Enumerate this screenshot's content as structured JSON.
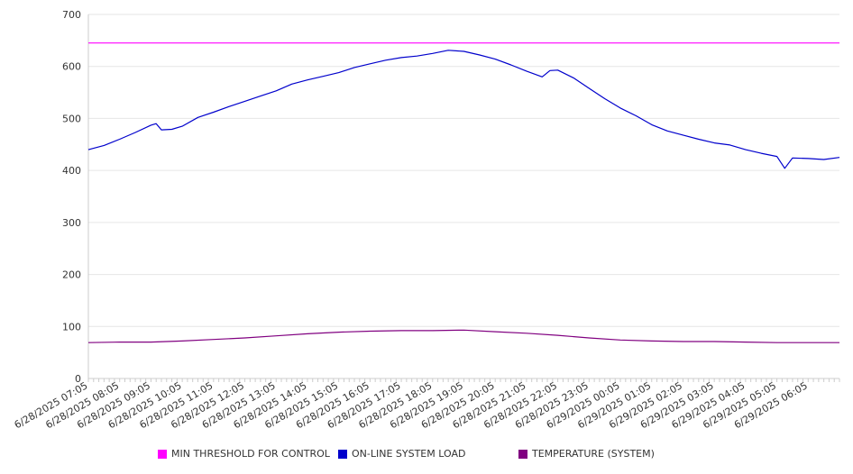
{
  "chart_data": {
    "type": "line",
    "title": "",
    "xlabel": "",
    "ylabel": "",
    "ylim": [
      0,
      700
    ],
    "yticks": [
      "0",
      "100",
      "200",
      "300",
      "400",
      "500",
      "600",
      "700"
    ],
    "xticks": [
      "6/28/2025 07:05",
      "6/28/2025 08:05",
      "6/28/2025 09:05",
      "6/28/2025 10:05",
      "6/28/2025 11:05",
      "6/28/2025 12:05",
      "6/28/2025 13:05",
      "6/28/2025 14:05",
      "6/28/2025 15:05",
      "6/28/2025 16:05",
      "6/28/2025 17:05",
      "6/28/2025 18:05",
      "6/28/2025 19:05",
      "6/28/2025 20:05",
      "6/28/2025 21:05",
      "6/28/2025 22:05",
      "6/28/2025 23:05",
      "6/29/2025 00:05",
      "6/29/2025 01:05",
      "6/29/2025 02:05",
      "6/29/2025 03:05",
      "6/29/2025 04:05",
      "6/29/2025 05:05",
      "6/29/2025 06:05"
    ],
    "x_start": "6/28/2025 07:05",
    "x_end": "6/29/2025 07:05",
    "grid": true,
    "legend_position": "bottom",
    "series": [
      {
        "name": "MIN THRESHOLD FOR CONTROL",
        "color": "#ff00ff",
        "points": [
          [
            "6/28/2025 07:05",
            645
          ],
          [
            "6/29/2025 07:05",
            645
          ]
        ]
      },
      {
        "name": "ON-LINE SYSTEM LOAD",
        "color": "#0000cc",
        "points": [
          [
            "6/28/2025 07:05",
            440
          ],
          [
            "6/28/2025 07:35",
            448
          ],
          [
            "6/28/2025 08:05",
            460
          ],
          [
            "6/28/2025 08:35",
            473
          ],
          [
            "6/28/2025 09:05",
            487
          ],
          [
            "6/28/2025 09:15",
            490
          ],
          [
            "6/28/2025 09:25",
            478
          ],
          [
            "6/28/2025 09:45",
            479
          ],
          [
            "6/28/2025 10:05",
            485
          ],
          [
            "6/28/2025 10:35",
            502
          ],
          [
            "6/28/2025 11:05",
            512
          ],
          [
            "6/28/2025 11:35",
            523
          ],
          [
            "6/28/2025 12:05",
            533
          ],
          [
            "6/28/2025 12:35",
            543
          ],
          [
            "6/28/2025 13:05",
            553
          ],
          [
            "6/28/2025 13:35",
            566
          ],
          [
            "6/28/2025 14:05",
            574
          ],
          [
            "6/28/2025 14:35",
            581
          ],
          [
            "6/28/2025 15:05",
            588
          ],
          [
            "6/28/2025 15:35",
            598
          ],
          [
            "6/28/2025 16:05",
            605
          ],
          [
            "6/28/2025 16:35",
            612
          ],
          [
            "6/28/2025 17:05",
            617
          ],
          [
            "6/28/2025 17:35",
            620
          ],
          [
            "6/28/2025 18:05",
            625
          ],
          [
            "6/28/2025 18:35",
            631
          ],
          [
            "6/28/2025 19:05",
            629
          ],
          [
            "6/28/2025 19:35",
            622
          ],
          [
            "6/28/2025 20:05",
            614
          ],
          [
            "6/28/2025 20:35",
            603
          ],
          [
            "6/28/2025 21:05",
            591
          ],
          [
            "6/28/2025 21:35",
            580
          ],
          [
            "6/28/2025 21:50",
            592
          ],
          [
            "6/28/2025 22:05",
            593
          ],
          [
            "6/28/2025 22:35",
            578
          ],
          [
            "6/28/2025 23:05",
            558
          ],
          [
            "6/28/2025 23:35",
            538
          ],
          [
            "6/29/2025 00:05",
            520
          ],
          [
            "6/29/2025 00:35",
            505
          ],
          [
            "6/29/2025 01:05",
            488
          ],
          [
            "6/29/2025 01:35",
            476
          ],
          [
            "6/29/2025 02:05",
            468
          ],
          [
            "6/29/2025 02:35",
            460
          ],
          [
            "6/29/2025 03:05",
            453
          ],
          [
            "6/29/2025 03:35",
            449
          ],
          [
            "6/29/2025 04:05",
            440
          ],
          [
            "6/29/2025 04:35",
            433
          ],
          [
            "6/29/2025 05:05",
            427
          ],
          [
            "6/29/2025 05:20",
            404
          ],
          [
            "6/29/2025 05:35",
            424
          ],
          [
            "6/29/2025 06:05",
            423
          ],
          [
            "6/29/2025 06:35",
            421
          ],
          [
            "6/29/2025 07:05",
            425
          ]
        ]
      },
      {
        "name": "TEMPERATURE (SYSTEM)",
        "color": "#800080",
        "points": [
          [
            "6/28/2025 07:05",
            69
          ],
          [
            "6/28/2025 08:05",
            70
          ],
          [
            "6/28/2025 09:05",
            70
          ],
          [
            "6/28/2025 10:05",
            72
          ],
          [
            "6/28/2025 11:05",
            75
          ],
          [
            "6/28/2025 12:05",
            78
          ],
          [
            "6/28/2025 13:05",
            82
          ],
          [
            "6/28/2025 14:05",
            86
          ],
          [
            "6/28/2025 15:05",
            89
          ],
          [
            "6/28/2025 16:05",
            91
          ],
          [
            "6/28/2025 17:05",
            92
          ],
          [
            "6/28/2025 18:05",
            92
          ],
          [
            "6/28/2025 19:05",
            93
          ],
          [
            "6/28/2025 20:05",
            90
          ],
          [
            "6/28/2025 21:05",
            87
          ],
          [
            "6/28/2025 22:05",
            83
          ],
          [
            "6/28/2025 23:05",
            78
          ],
          [
            "6/29/2025 00:05",
            74
          ],
          [
            "6/29/2025 01:05",
            72
          ],
          [
            "6/29/2025 02:05",
            71
          ],
          [
            "6/29/2025 03:05",
            71
          ],
          [
            "6/29/2025 04:05",
            70
          ],
          [
            "6/29/2025 05:05",
            69
          ],
          [
            "6/29/2025 06:05",
            69
          ],
          [
            "6/29/2025 07:05",
            69
          ]
        ]
      }
    ]
  }
}
